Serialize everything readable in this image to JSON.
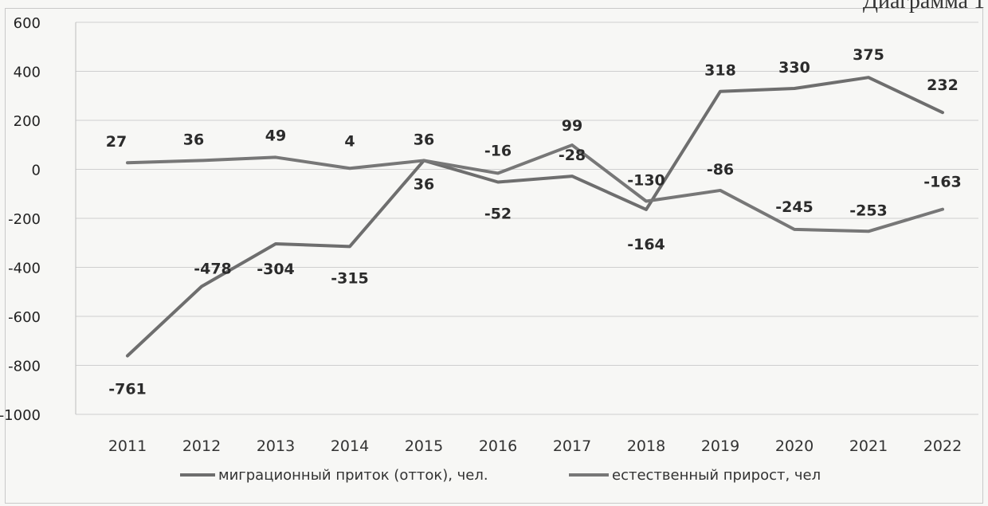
{
  "page": {
    "corner_caption": "Диаграмма 1"
  },
  "chart_data": {
    "type": "line",
    "title": "",
    "xlabel": "",
    "ylabel": "",
    "x": [
      "2011",
      "2012",
      "2013",
      "2014",
      "2015",
      "2016",
      "2017",
      "2018",
      "2019",
      "2020",
      "2021",
      "2022"
    ],
    "ylim": [
      -1000,
      600
    ],
    "yticks": [
      600,
      400,
      200,
      0,
      -200,
      -400,
      -600,
      -800,
      -1000
    ],
    "grid": true,
    "legend_position": "bottom",
    "series": [
      {
        "name": "миграционный приток (отток), чел.",
        "color": "#6e6e6e",
        "values": [
          -761,
          -478,
          -304,
          -315,
          36,
          -52,
          -28,
          -164,
          318,
          330,
          375,
          232
        ]
      },
      {
        "name": "естественный прирост, чел",
        "color": "#777777",
        "values": [
          27,
          36,
          49,
          4,
          36,
          -16,
          99,
          -130,
          -86,
          -245,
          -253,
          -163
        ]
      }
    ]
  }
}
